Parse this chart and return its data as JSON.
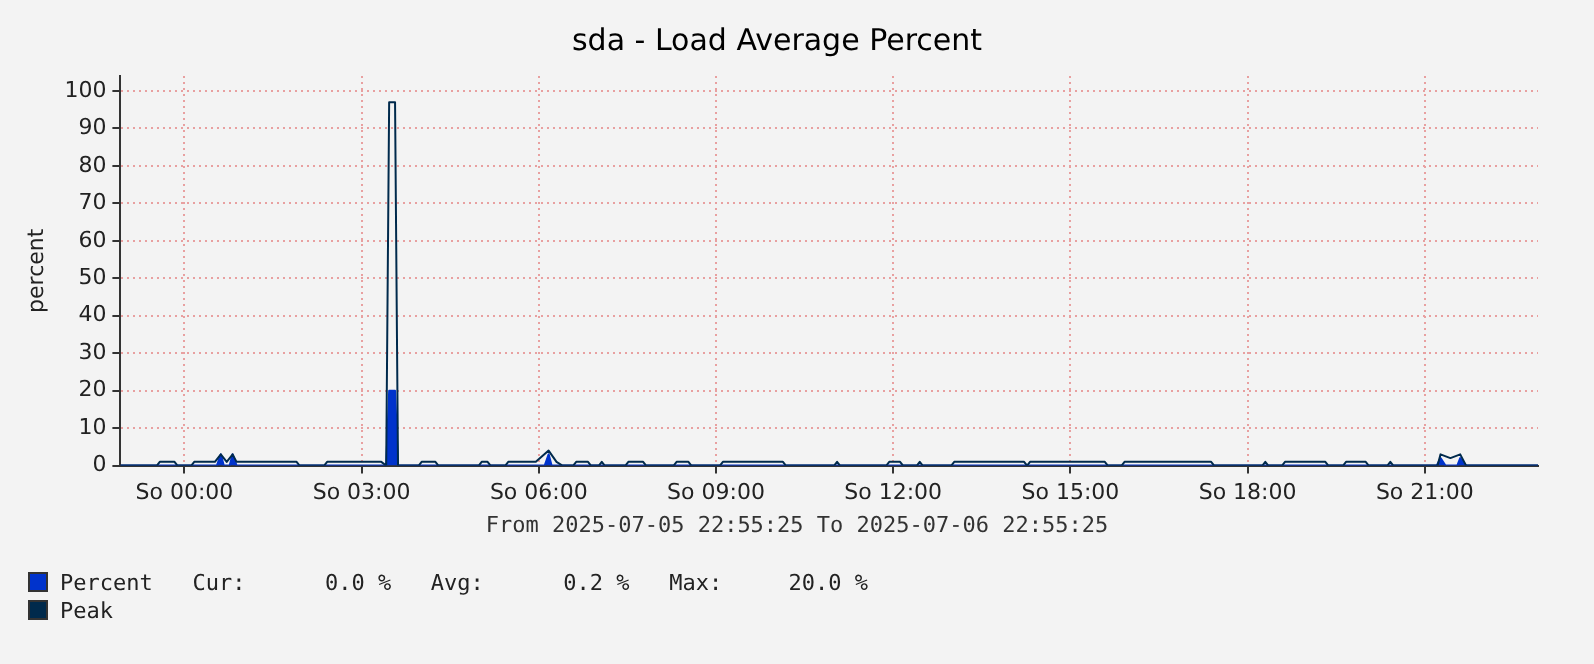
{
  "chart_data": {
    "type": "area",
    "title": "sda - Load Average Percent",
    "ylabel": "percent",
    "xlim": [
      "2025-07-05T22:55",
      "2025-07-06T22:55"
    ],
    "xticks": [
      {
        "value": "2025-07-06T00:00",
        "label": "So 00:00"
      },
      {
        "value": "2025-07-06T03:00",
        "label": "So 03:00"
      },
      {
        "value": "2025-07-06T06:00",
        "label": "So 06:00"
      },
      {
        "value": "2025-07-06T09:00",
        "label": "So 09:00"
      },
      {
        "value": "2025-07-06T12:00",
        "label": "So 12:00"
      },
      {
        "value": "2025-07-06T15:00",
        "label": "So 15:00"
      },
      {
        "value": "2025-07-06T18:00",
        "label": "So 18:00"
      },
      {
        "value": "2025-07-06T21:00",
        "label": "So 21:00"
      }
    ],
    "ylim": [
      0,
      104
    ],
    "yticks": [
      0,
      10,
      20,
      30,
      40,
      50,
      60,
      70,
      80,
      90,
      100
    ],
    "grid": true,
    "legend": "bottom left",
    "annotations": [
      "From 2025-07-05 22:55:25 To 2025-07-06 22:55:25",
      "Cur:      0.0 %   Avg:      0.2 %   Max:     20.0 %"
    ],
    "series": [
      {
        "name": "Percent",
        "color": "#0033cc",
        "x": [
          "2025-07-05T22:55",
          "2025-07-06T00:33",
          "2025-07-06T00:37",
          "2025-07-06T00:40",
          "2025-07-06T00:46",
          "2025-07-06T00:49",
          "2025-07-06T00:53",
          "2025-07-06T03:25",
          "2025-07-06T03:28",
          "2025-07-06T03:34",
          "2025-07-06T03:37",
          "2025-07-06T06:06",
          "2025-07-06T06:10",
          "2025-07-06T06:13",
          "2025-07-06T21:12",
          "2025-07-06T21:16",
          "2025-07-06T21:21",
          "2025-07-06T21:33",
          "2025-07-06T21:36",
          "2025-07-06T21:42",
          "2025-07-06T22:55"
        ],
        "values": [
          0,
          0,
          3,
          0,
          0,
          3,
          0,
          0,
          20,
          20,
          0,
          0,
          3,
          0,
          0,
          2,
          0,
          0,
          2,
          0,
          0
        ]
      },
      {
        "name": "Peak",
        "type": "line",
        "color": "#002a4c",
        "x": [
          "2025-07-05T22:55",
          "2025-07-05T23:32",
          "2025-07-05T23:35",
          "2025-07-05T23:50",
          "2025-07-05T23:53",
          "2025-07-06T00:07",
          "2025-07-06T00:10",
          "2025-07-06T00:31",
          "2025-07-06T00:37",
          "2025-07-06T00:43",
          "2025-07-06T00:49",
          "2025-07-06T00:53",
          "2025-07-06T01:01",
          "2025-07-06T01:54",
          "2025-07-06T01:57",
          "2025-07-06T02:22",
          "2025-07-06T02:25",
          "2025-07-06T03:20",
          "2025-07-06T03:25",
          "2025-07-06T03:28",
          "2025-07-06T03:34",
          "2025-07-06T03:37",
          "2025-07-06T03:58",
          "2025-07-06T04:01",
          "2025-07-06T04:15",
          "2025-07-06T04:18",
          "2025-07-06T04:59",
          "2025-07-06T05:02",
          "2025-07-06T05:08",
          "2025-07-06T05:11",
          "2025-07-06T05:26",
          "2025-07-06T05:29",
          "2025-07-06T05:57",
          "2025-07-06T06:10",
          "2025-07-06T06:18",
          "2025-07-06T06:24",
          "2025-07-06T06:35",
          "2025-07-06T06:38",
          "2025-07-06T06:50",
          "2025-07-06T06:53",
          "2025-07-06T07:01",
          "2025-07-06T07:04",
          "2025-07-06T07:07",
          "2025-07-06T07:28",
          "2025-07-06T07:31",
          "2025-07-06T07:46",
          "2025-07-06T07:49",
          "2025-07-06T08:17",
          "2025-07-06T08:20",
          "2025-07-06T08:32",
          "2025-07-06T08:35",
          "2025-07-06T09:04",
          "2025-07-06T09:07",
          "2025-07-06T10:08",
          "2025-07-06T10:11",
          "2025-07-06T11:00",
          "2025-07-06T11:03",
          "2025-07-06T11:06",
          "2025-07-06T11:53",
          "2025-07-06T11:56",
          "2025-07-06T12:07",
          "2025-07-06T12:10",
          "2025-07-06T12:24",
          "2025-07-06T12:27",
          "2025-07-06T12:30",
          "2025-07-06T12:59",
          "2025-07-06T13:02",
          "2025-07-06T14:13",
          "2025-07-06T14:16",
          "2025-07-06T14:19",
          "2025-07-06T15:35",
          "2025-07-06T15:38",
          "2025-07-06T15:52",
          "2025-07-06T15:55",
          "2025-07-06T17:23",
          "2025-07-06T17:26",
          "2025-07-06T18:15",
          "2025-07-06T18:18",
          "2025-07-06T18:21",
          "2025-07-06T18:35",
          "2025-07-06T18:38",
          "2025-07-06T19:19",
          "2025-07-06T19:22",
          "2025-07-06T19:37",
          "2025-07-06T19:40",
          "2025-07-06T20:00",
          "2025-07-06T20:03",
          "2025-07-06T20:22",
          "2025-07-06T20:25",
          "2025-07-06T20:28",
          "2025-07-06T21:13",
          "2025-07-06T21:16",
          "2025-07-06T21:26",
          "2025-07-06T21:36",
          "2025-07-06T21:42",
          "2025-07-06T22:55"
        ],
        "values": [
          0,
          0,
          1,
          1,
          0,
          0,
          1,
          1,
          3,
          1,
          3,
          1,
          1,
          1,
          0,
          0,
          1,
          1,
          0,
          97,
          97,
          0,
          0,
          1,
          1,
          0,
          0,
          1,
          1,
          0,
          0,
          1,
          1,
          4,
          1,
          0,
          0,
          1,
          1,
          0,
          0,
          1,
          0,
          0,
          1,
          1,
          0,
          0,
          1,
          1,
          0,
          0,
          1,
          1,
          0,
          0,
          1,
          0,
          0,
          1,
          1,
          0,
          0,
          1,
          0,
          0,
          1,
          1,
          0,
          1,
          1,
          0,
          0,
          1,
          1,
          0,
          0,
          1,
          0,
          0,
          1,
          1,
          0,
          0,
          1,
          1,
          0,
          0,
          1,
          0,
          0,
          3,
          2,
          3,
          0,
          0
        ]
      }
    ]
  }
}
